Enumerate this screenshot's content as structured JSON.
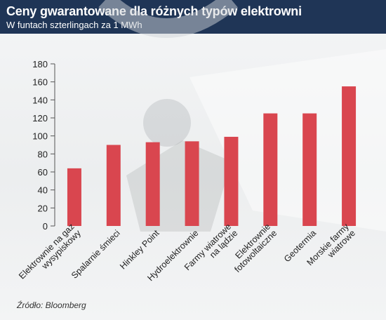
{
  "header": {
    "title": "Ceny gwarantowane dla różnych typów elektrowni",
    "subtitle": "W funtach szterlingach za 1 MWh"
  },
  "source": "Źródło: Bloomberg",
  "colors": {
    "header_bg": "#1f3556",
    "bar": "#d9464f"
  },
  "chart_data": {
    "type": "bar",
    "title": "Ceny gwarantowane dla różnych typów elektrowni",
    "subtitle": "W funtach szterlingach za 1 MWh",
    "xlabel": "",
    "ylabel": "",
    "ylim": [
      0,
      180
    ],
    "yticks": [
      0,
      20,
      40,
      60,
      80,
      100,
      120,
      140,
      160,
      180
    ],
    "grid": false,
    "categories": [
      [
        "Elektrownie na gaz",
        "wysypiskowy"
      ],
      [
        "Spalarnie śmieci"
      ],
      [
        "Hinkley Point"
      ],
      [
        "Hydroelektrownie"
      ],
      [
        "Farmy wiatrowe",
        "na lądzie"
      ],
      [
        "Elektrownie",
        "fotowoltaiczne"
      ],
      [
        "Geotermia"
      ],
      [
        "Morskie farmy",
        "wiatrowe"
      ]
    ],
    "values": [
      64,
      90,
      93,
      94,
      99,
      125,
      125,
      155
    ]
  }
}
